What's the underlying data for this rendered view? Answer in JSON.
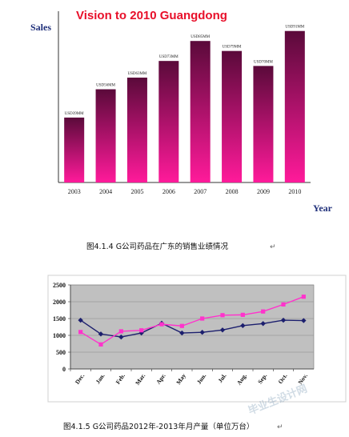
{
  "chart_data": [
    {
      "type": "bar",
      "title": "Vision to 2010 Guangdong",
      "ylabel": "Sales",
      "xlabel": "Year",
      "categories": [
        "2003",
        "2004",
        "2005",
        "2006",
        "2007",
        "2008",
        "2009",
        "2010"
      ],
      "values": [
        39,
        56,
        63,
        73,
        85,
        79,
        70,
        91
      ],
      "data_labels": [
        "USD39MM",
        "USD56MM",
        "USD63MM",
        "USD73MM",
        "USD85MM",
        "USD79MM",
        "USD70MM",
        "USD91MM"
      ],
      "ylim": [
        0,
        100
      ],
      "grid": false,
      "legend": "none",
      "colors": {
        "bar_top": "#5a0a3a",
        "bar_bottom": "#ff1a9a",
        "title": "#e8102a",
        "axis_label": "#1f2f7a"
      }
    },
    {
      "type": "line",
      "categories": [
        "Dec.",
        "Jan.",
        "Feb.",
        "Mar.",
        "Apr.",
        "May",
        "Jun.",
        "Jul.",
        "Aug.",
        "Sep.",
        "Oct.",
        "Nov."
      ],
      "yticks": [
        "2500",
        "2000",
        "1500",
        "1000",
        "500",
        "0"
      ],
      "ylim": [
        0,
        2500
      ],
      "grid": true,
      "series": [
        {
          "color": "#1c1f6e",
          "marker": "diamond",
          "values": [
            1450,
            1040,
            950,
            1070,
            1360,
            1070,
            1090,
            1160,
            1290,
            1350,
            1450,
            1440
          ]
        },
        {
          "color": "#ff33cc",
          "marker": "square",
          "values": [
            1100,
            730,
            1120,
            1150,
            1330,
            1280,
            1500,
            1600,
            1610,
            1710,
            1920,
            2150
          ]
        }
      ],
      "colors": {
        "plot_bg": "#c0c0c0",
        "gridline": "#888888"
      }
    }
  ],
  "captions": {
    "figure1": "图4.1.4 G公司药品在广东的销售业绩情况",
    "figure2": "图4.1.5 G公司药品2012年-2013年月产量（单位万台）"
  },
  "watermark": "毕业生设计网"
}
